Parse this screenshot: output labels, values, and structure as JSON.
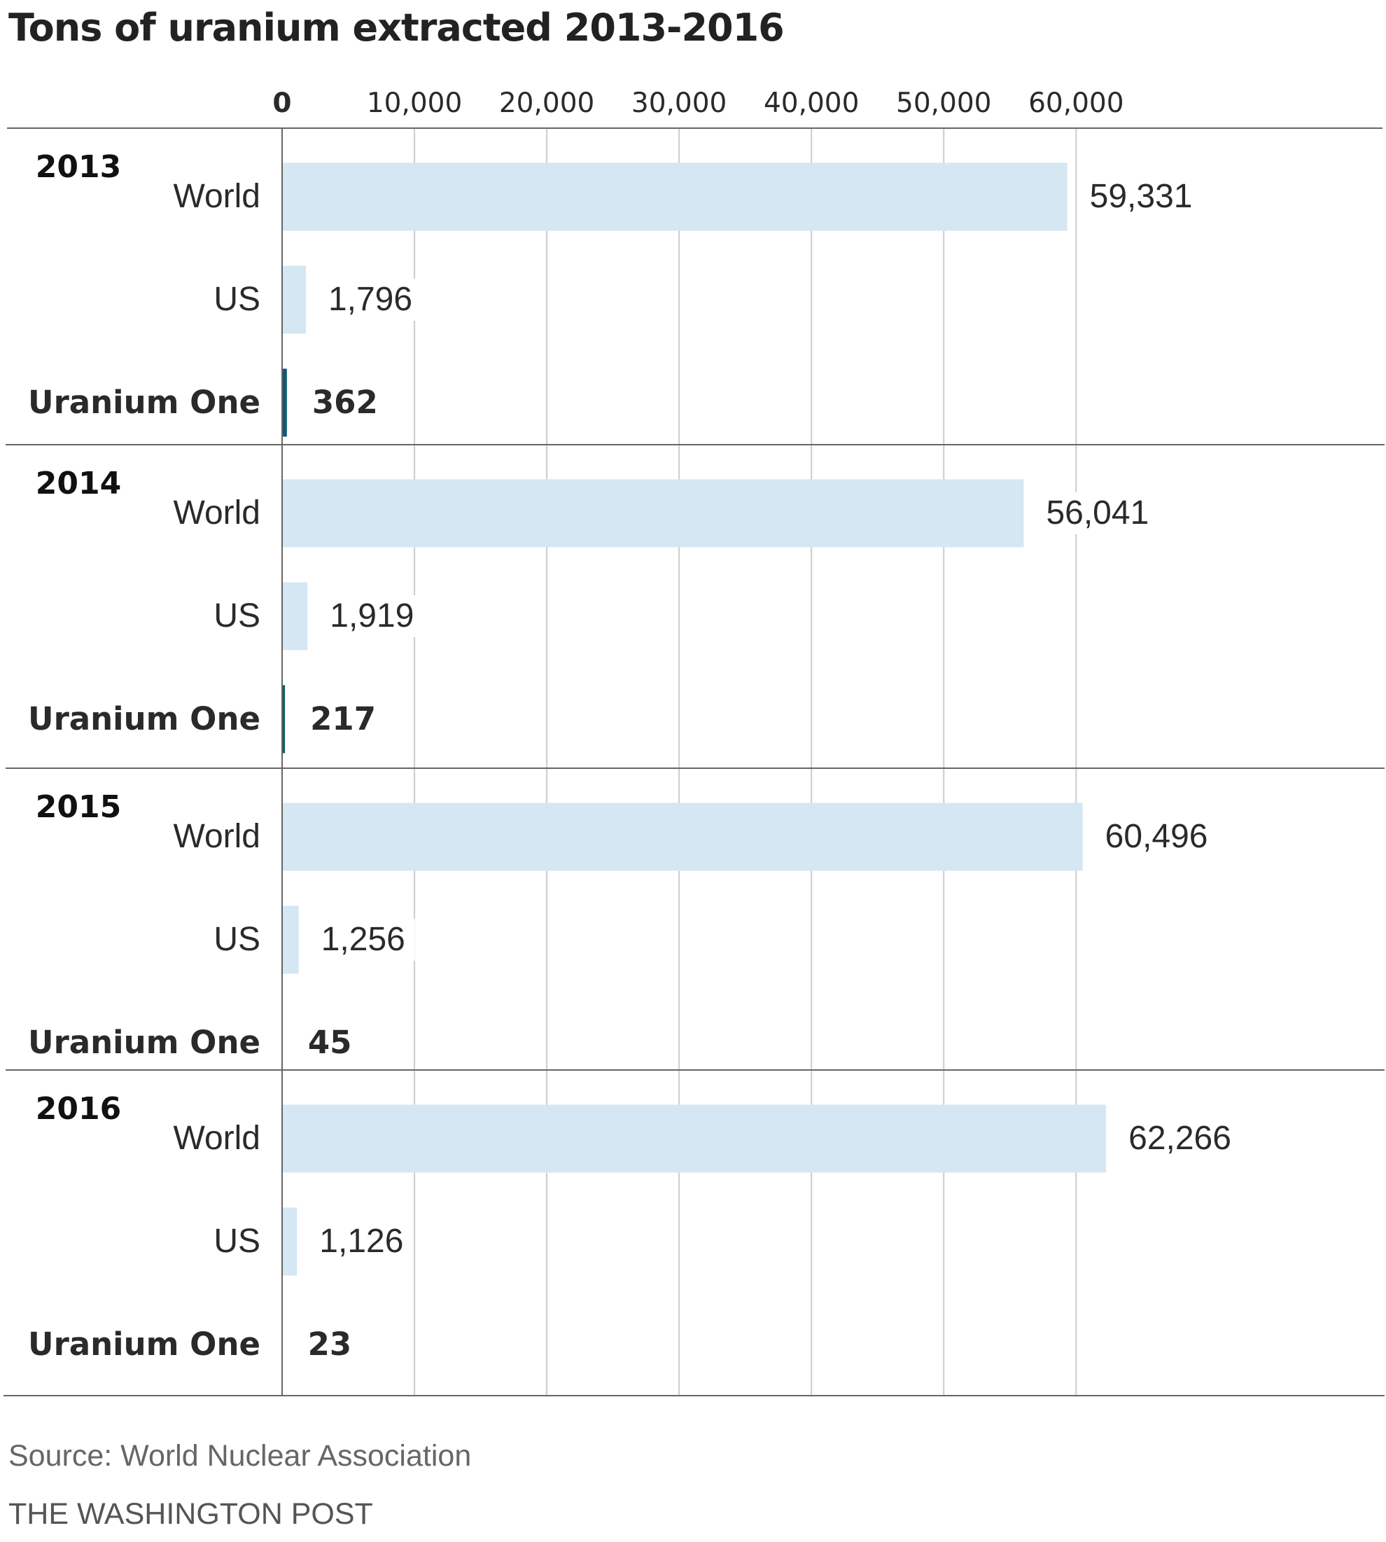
{
  "title": "Tons of uranium extracted 2013-2016",
  "source": "Source:  World Nuclear Association",
  "credit": "THE WASHINGTON POST",
  "colors": {
    "bar": "#d5e7f3",
    "highlight_bar": "#0d5a73",
    "grid": "#cccccc",
    "axis": "#666666",
    "text": "#2a2a2a"
  },
  "chart_data": {
    "type": "bar",
    "orientation": "horizontal",
    "title": "Tons of uranium extracted 2013-2016",
    "xlim": [
      0,
      60000
    ],
    "x_ticks": [
      0,
      10000,
      20000,
      30000,
      40000,
      50000,
      60000
    ],
    "x_tick_labels": [
      "0",
      "10,000",
      "20,000",
      "30,000",
      "40,000",
      "50,000",
      "60,000"
    ],
    "grid": true,
    "groups": [
      {
        "year": "2013",
        "rows": [
          {
            "label": "World",
            "value": 59331,
            "value_label": "59,331"
          },
          {
            "label": "US",
            "value": 1796,
            "value_label": "1,796"
          },
          {
            "label": "Uranium One",
            "value": 362,
            "value_label": "362",
            "highlight": true
          }
        ]
      },
      {
        "year": "2014",
        "rows": [
          {
            "label": "World",
            "value": 56041,
            "value_label": "56,041"
          },
          {
            "label": "US",
            "value": 1919,
            "value_label": "1,919"
          },
          {
            "label": "Uranium One",
            "value": 217,
            "value_label": "217",
            "highlight": true
          }
        ]
      },
      {
        "year": "2015",
        "rows": [
          {
            "label": "World",
            "value": 60496,
            "value_label": "60,496"
          },
          {
            "label": "US",
            "value": 1256,
            "value_label": "1,256"
          },
          {
            "label": "Uranium One",
            "value": 45,
            "value_label": "45",
            "highlight": true
          }
        ]
      },
      {
        "year": "2016",
        "rows": [
          {
            "label": "World",
            "value": 62266,
            "value_label": "62,266"
          },
          {
            "label": "US",
            "value": 1126,
            "value_label": "1,126"
          },
          {
            "label": "Uranium One",
            "value": 23,
            "value_label": "23",
            "highlight": true
          }
        ]
      }
    ]
  }
}
